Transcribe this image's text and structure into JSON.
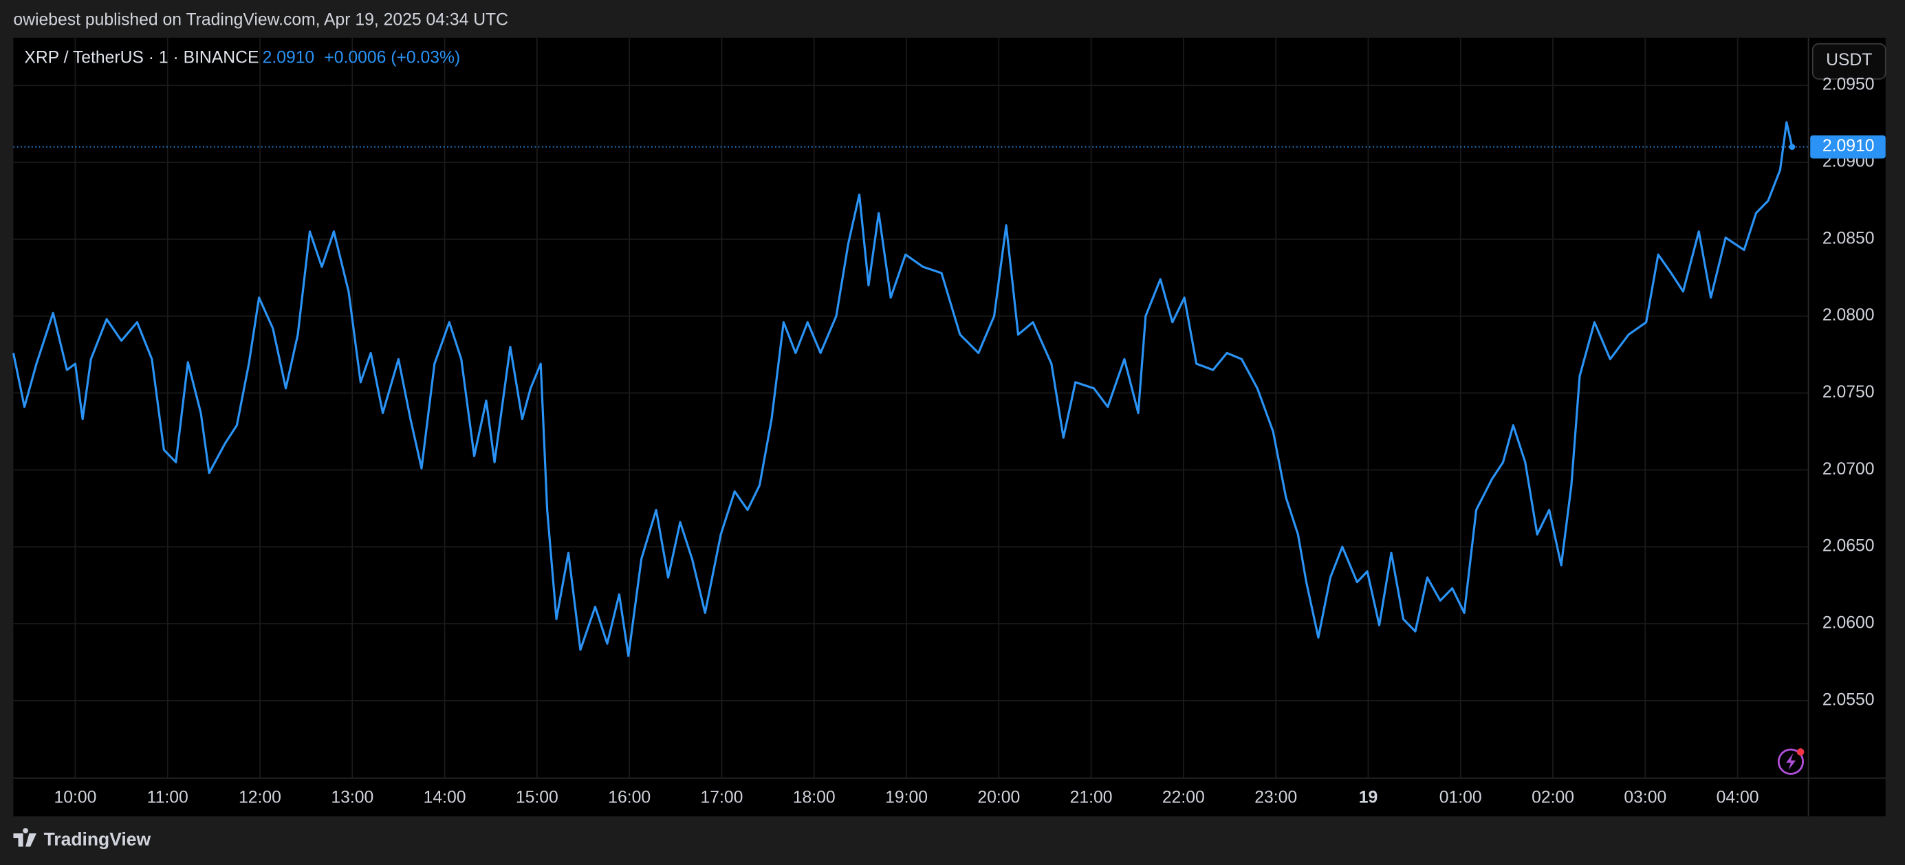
{
  "chart_data": {
    "type": "line",
    "publisher": "owiebest published on TradingView.com, Apr 19, 2025 04:34 UTC",
    "title": "XRP / TetherUS · 1 · BINANCE",
    "last_price": {
      "value": 2.091,
      "label": "2.0910"
    },
    "price_change": "+0.0006 (+0.03%)",
    "currency": "USDT",
    "brand": "TradingView",
    "color": "#2a93f5",
    "grid": true,
    "x": [
      9.33,
      9.45,
      9.58,
      9.76,
      9.91,
      10.0,
      10.08,
      10.17,
      10.34,
      10.5,
      10.67,
      10.83,
      10.96,
      11.09,
      11.22,
      11.36,
      11.45,
      11.62,
      11.75,
      11.88,
      11.99,
      12.14,
      12.28,
      12.41,
      12.54,
      12.67,
      12.8,
      12.96,
      13.09,
      13.2,
      13.33,
      13.5,
      13.63,
      13.75,
      13.89,
      14.05,
      14.18,
      14.32,
      14.45,
      14.54,
      14.71,
      14.84,
      14.93,
      15.04,
      15.11,
      15.21,
      15.34,
      15.47,
      15.63,
      15.76,
      15.89,
      15.99,
      16.13,
      16.29,
      16.42,
      16.55,
      16.68,
      16.82,
      16.99,
      17.14,
      17.28,
      17.41,
      17.54,
      17.67,
      17.8,
      17.93,
      18.07,
      18.24,
      18.37,
      18.49,
      18.59,
      18.7,
      18.83,
      18.99,
      19.18,
      19.38,
      19.58,
      19.78,
      19.95,
      20.08,
      20.21,
      20.37,
      20.57,
      20.7,
      20.83,
      21.03,
      21.18,
      21.36,
      21.51,
      21.59,
      21.75,
      21.88,
      22.01,
      22.14,
      22.32,
      22.47,
      22.63,
      22.8,
      22.97,
      23.11,
      23.24,
      23.33,
      23.46,
      23.59,
      23.72,
      23.88,
      23.99,
      24.12,
      24.25,
      24.38,
      24.51,
      24.64,
      24.78,
      24.91,
      25.04,
      25.17,
      25.34,
      25.46,
      25.57,
      25.7,
      25.83,
      25.96,
      26.09,
      26.2,
      26.29,
      26.45,
      26.62,
      26.82,
      27.01,
      27.14,
      27.28,
      27.41,
      27.58,
      27.71,
      27.87,
      28.07,
      28.2,
      28.33,
      28.46,
      28.53,
      28.59
    ],
    "values": [
      2.0776,
      2.0741,
      2.0769,
      2.0802,
      2.0765,
      2.0769,
      2.0733,
      2.0772,
      2.0798,
      2.0784,
      2.0796,
      2.0772,
      2.0713,
      2.0705,
      2.077,
      2.0737,
      2.0698,
      2.0717,
      2.0729,
      2.0769,
      2.0812,
      2.0792,
      2.0753,
      2.0788,
      2.0855,
      2.0832,
      2.0855,
      2.0816,
      2.0757,
      2.0776,
      2.0737,
      2.0772,
      2.0733,
      2.0701,
      2.0769,
      2.0796,
      2.0772,
      2.0709,
      2.0745,
      2.0705,
      2.078,
      2.0733,
      2.0753,
      2.0769,
      2.0674,
      2.0603,
      2.0646,
      2.0583,
      2.0611,
      2.0587,
      2.0619,
      2.0579,
      2.0642,
      2.0674,
      2.063,
      2.0666,
      2.0642,
      2.0607,
      2.0658,
      2.0686,
      2.0674,
      2.069,
      2.0733,
      2.0796,
      2.0776,
      2.0796,
      2.0776,
      2.08,
      2.0847,
      2.0879,
      2.082,
      2.0867,
      2.0812,
      2.084,
      2.0832,
      2.0828,
      2.0788,
      2.0776,
      2.08,
      2.0859,
      2.0788,
      2.0796,
      2.0769,
      2.0721,
      2.0757,
      2.0753,
      2.0741,
      2.0772,
      2.0737,
      2.08,
      2.0824,
      2.0796,
      2.0812,
      2.0769,
      2.0765,
      2.0776,
      2.0772,
      2.0753,
      2.0725,
      2.0682,
      2.0658,
      2.0627,
      2.0591,
      2.063,
      2.065,
      2.0627,
      2.0634,
      2.0599,
      2.0646,
      2.0603,
      2.0595,
      2.063,
      2.0615,
      2.0623,
      2.0607,
      2.0674,
      2.0694,
      2.0705,
      2.0729,
      2.0705,
      2.0658,
      2.0674,
      2.0638,
      2.069,
      2.0761,
      2.0796,
      2.0772,
      2.0788,
      2.0796,
      2.084,
      2.0828,
      2.0816,
      2.0855,
      2.0812,
      2.0851,
      2.0843,
      2.0867,
      2.0875,
      2.0895,
      2.0926,
      2.091
    ],
    "xlim": [
      9.33,
      28.76
    ],
    "ylim": [
      2.05,
      2.0981
    ],
    "xticks": [
      {
        "value": 10,
        "label": "10:00"
      },
      {
        "value": 11,
        "label": "11:00"
      },
      {
        "value": 12,
        "label": "12:00"
      },
      {
        "value": 13,
        "label": "13:00"
      },
      {
        "value": 14,
        "label": "14:00"
      },
      {
        "value": 15,
        "label": "15:00"
      },
      {
        "value": 16,
        "label": "16:00"
      },
      {
        "value": 17,
        "label": "17:00"
      },
      {
        "value": 18,
        "label": "18:00"
      },
      {
        "value": 19,
        "label": "19:00"
      },
      {
        "value": 20,
        "label": "20:00"
      },
      {
        "value": 21,
        "label": "21:00"
      },
      {
        "value": 22,
        "label": "22:00"
      },
      {
        "value": 23,
        "label": "23:00"
      },
      {
        "value": 24,
        "label": "19"
      },
      {
        "value": 25,
        "label": "01:00"
      },
      {
        "value": 26,
        "label": "02:00"
      },
      {
        "value": 27,
        "label": "03:00"
      },
      {
        "value": 28,
        "label": "04:00"
      }
    ],
    "yticks": [
      {
        "value": 2.055,
        "label": "2.0550"
      },
      {
        "value": 2.06,
        "label": "2.0600"
      },
      {
        "value": 2.065,
        "label": "2.0650"
      },
      {
        "value": 2.07,
        "label": "2.0700"
      },
      {
        "value": 2.075,
        "label": "2.0750"
      },
      {
        "value": 2.08,
        "label": "2.0800"
      },
      {
        "value": 2.085,
        "label": "2.0850"
      },
      {
        "value": 2.09,
        "label": "2.0900"
      },
      {
        "value": 2.095,
        "label": "2.0950"
      }
    ]
  }
}
